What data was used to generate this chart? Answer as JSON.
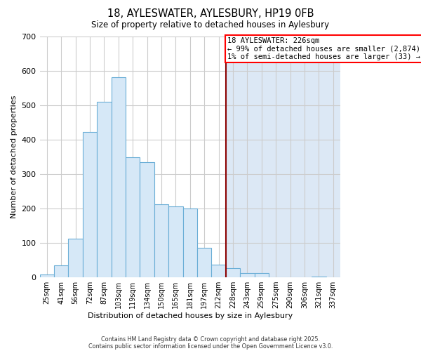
{
  "title": "18, AYLESWATER, AYLESBURY, HP19 0FB",
  "subtitle": "Size of property relative to detached houses in Aylesbury",
  "xlabel": "Distribution of detached houses by size in Aylesbury",
  "ylabel": "Number of detached properties",
  "bar_labels": [
    "25sqm",
    "41sqm",
    "56sqm",
    "72sqm",
    "87sqm",
    "103sqm",
    "119sqm",
    "134sqm",
    "150sqm",
    "165sqm",
    "181sqm",
    "197sqm",
    "212sqm",
    "228sqm",
    "243sqm",
    "259sqm",
    "275sqm",
    "290sqm",
    "306sqm",
    "321sqm",
    "337sqm"
  ],
  "bar_heights": [
    8,
    35,
    113,
    422,
    510,
    580,
    348,
    335,
    212,
    205,
    200,
    85,
    37,
    27,
    12,
    12,
    0,
    0,
    0,
    2,
    0
  ],
  "bar_color": "#d6e8f7",
  "bar_edge_color": "#6aaed6",
  "red_line_index": 13,
  "red_line_color": "#8b0000",
  "ylim": [
    0,
    700
  ],
  "yticks": [
    0,
    100,
    200,
    300,
    400,
    500,
    600,
    700
  ],
  "grid_color": "#cccccc",
  "bg_color": "#ffffff",
  "right_bg_color": "#dce8f5",
  "annotation_title": "18 AYLESWATER: 226sqm",
  "annotation_line1": "← 99% of detached houses are smaller (2,874)",
  "annotation_line2": "1% of semi-detached houses are larger (33) →",
  "footer1": "Contains HM Land Registry data © Crown copyright and database right 2025.",
  "footer2": "Contains public sector information licensed under the Open Government Licence v3.0."
}
